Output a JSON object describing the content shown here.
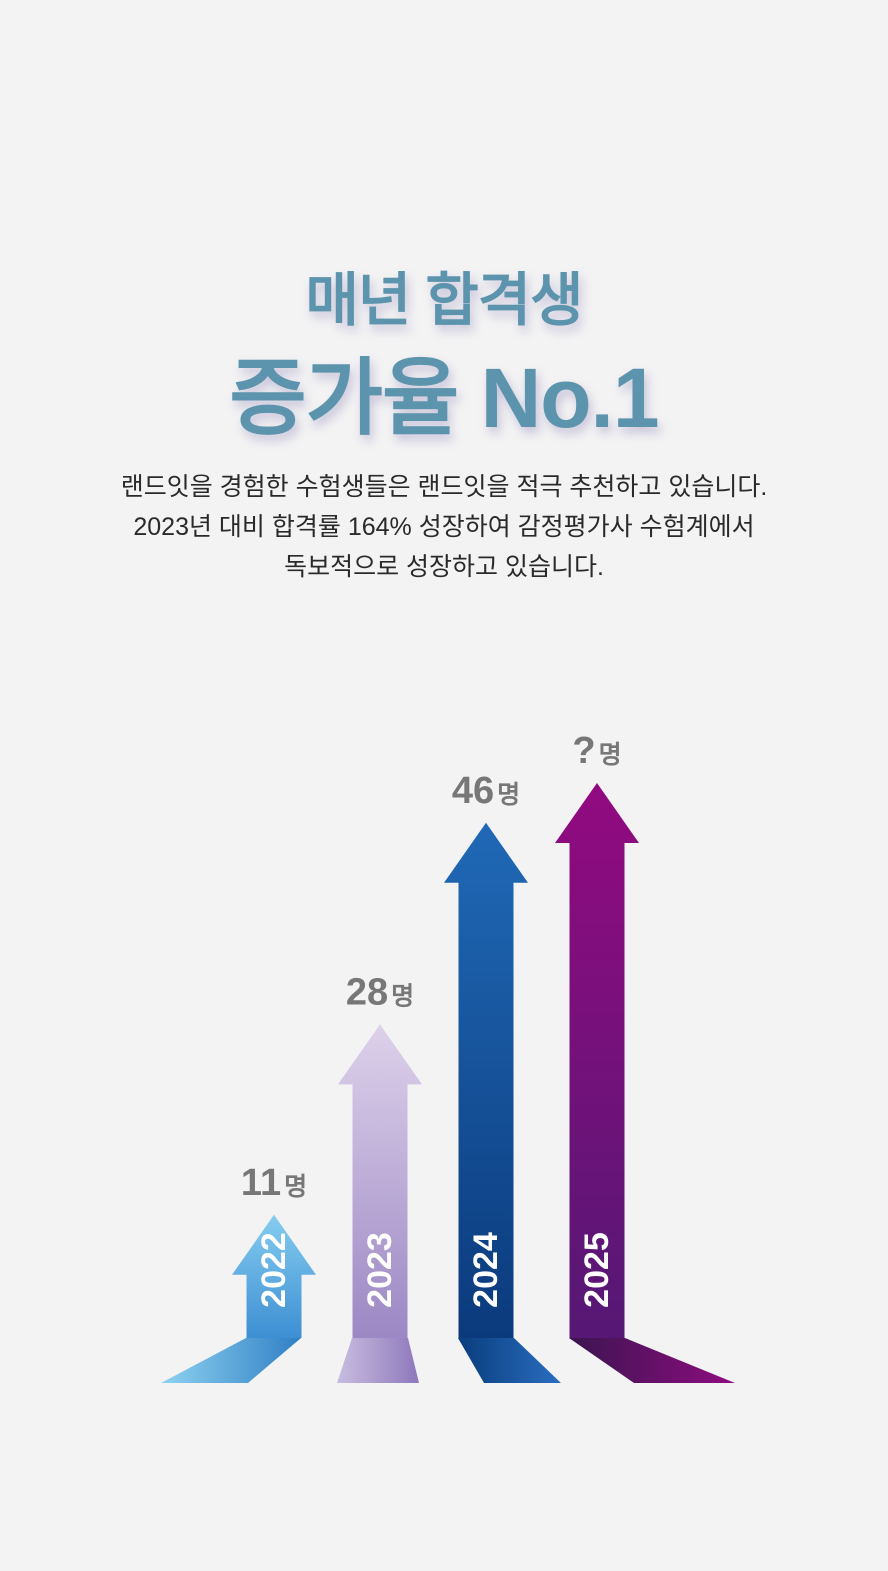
{
  "headline": {
    "line1": "매년 합격생",
    "line2": "증가율 No.1"
  },
  "description": [
    "랜드잇을 경험한 수험생들은 랜드잇을 적극 추천하고 있습니다.",
    "2023년 대비 합격률 164% 성장하여 감정평가사 수험계에서",
    "독보적으로 성장하고 있습니다."
  ],
  "colors": {
    "headline": "#5d94ad",
    "label": "#777777",
    "background": "#f3f3f4"
  },
  "chart_data": {
    "type": "bar",
    "title": "",
    "xlabel": "",
    "ylabel": "",
    "unit": "명",
    "categories": [
      "2022",
      "2023",
      "2024",
      "2025"
    ],
    "labels": [
      "11",
      "28",
      "46",
      "?"
    ],
    "values": [
      11,
      28,
      46,
      null
    ],
    "ylim": [
      0,
      60
    ],
    "grid": false,
    "legend": "none",
    "bar_colors": [
      {
        "top": "#86cdf0",
        "bottom": "#3d8fd3"
      },
      {
        "top": "#ddd1ea",
        "bottom": "#9c88c4"
      },
      {
        "top": "#2069b6",
        "bottom": "#0b3a7c"
      },
      {
        "top": "#920a80",
        "bottom": "#551874"
      }
    ]
  }
}
